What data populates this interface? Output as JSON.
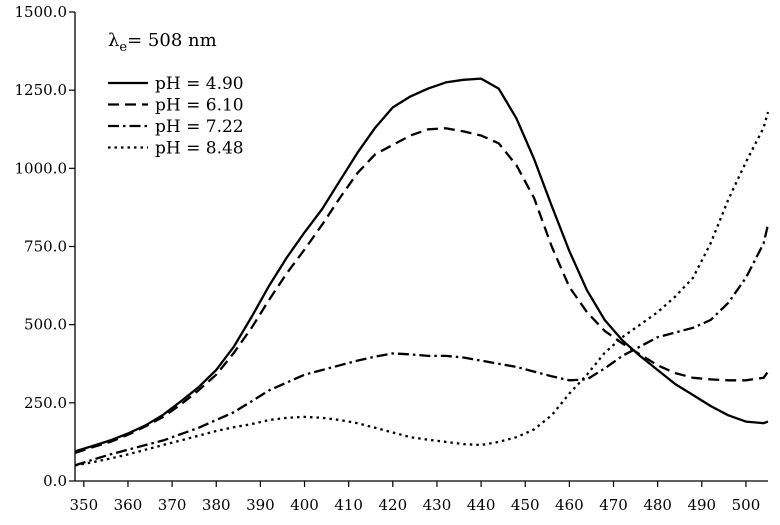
{
  "annotation": {
    "lambda": "λ",
    "sub": "e",
    "value": "= 508 nm"
  },
  "chart_data": {
    "type": "line",
    "title": "",
    "xlabel": "",
    "ylabel": "",
    "xlim": [
      348,
      505
    ],
    "ylim": [
      0,
      1500
    ],
    "grid": false,
    "legend_position": "top-left",
    "x_ticks": [
      350,
      360,
      370,
      380,
      390,
      400,
      410,
      420,
      430,
      440,
      450,
      460,
      470,
      480,
      490,
      500
    ],
    "y_ticks": [
      0,
      250,
      500,
      750,
      1000,
      1250,
      1500
    ],
    "y_tick_labels": [
      "0.0",
      "250.0",
      "500.0",
      "750.0",
      "1000.0",
      "1250.0",
      "1500.0"
    ],
    "x": [
      348,
      352,
      356,
      360,
      364,
      368,
      372,
      376,
      380,
      384,
      388,
      392,
      396,
      400,
      404,
      408,
      412,
      416,
      420,
      424,
      428,
      432,
      436,
      440,
      444,
      448,
      452,
      456,
      460,
      464,
      468,
      472,
      476,
      480,
      484,
      488,
      492,
      496,
      500,
      504,
      505
    ],
    "series": [
      {
        "name": "pH = 4.90",
        "dash": "solid",
        "values": [
          95,
          112,
          130,
          152,
          178,
          212,
          255,
          300,
          355,
          430,
          525,
          625,
          715,
          795,
          870,
          960,
          1050,
          1130,
          1195,
          1230,
          1255,
          1275,
          1283,
          1287,
          1255,
          1160,
          1030,
          880,
          735,
          610,
          515,
          450,
          400,
          355,
          310,
          275,
          240,
          210,
          190,
          185,
          190
        ]
      },
      {
        "name": "pH = 6.10",
        "dash": "dash",
        "values": [
          90,
          108,
          125,
          148,
          175,
          205,
          245,
          290,
          340,
          410,
          490,
          580,
          665,
          740,
          820,
          905,
          985,
          1045,
          1075,
          1105,
          1125,
          1128,
          1118,
          1105,
          1080,
          1010,
          905,
          750,
          620,
          540,
          480,
          440,
          405,
          370,
          345,
          330,
          325,
          322,
          322,
          330,
          350
        ]
      },
      {
        "name": "pH = 7.22",
        "dash": "dashdot",
        "values": [
          50,
          68,
          85,
          100,
          115,
          130,
          150,
          170,
          195,
          220,
          255,
          290,
          315,
          340,
          355,
          370,
          385,
          398,
          408,
          405,
          400,
          400,
          395,
          385,
          375,
          365,
          350,
          335,
          322,
          325,
          360,
          400,
          430,
          460,
          475,
          490,
          515,
          570,
          650,
          760,
          820
        ]
      },
      {
        "name": "pH = 8.48",
        "dash": "dot",
        "values": [
          50,
          60,
          72,
          85,
          100,
          115,
          130,
          145,
          160,
          172,
          182,
          195,
          202,
          205,
          202,
          195,
          185,
          170,
          155,
          140,
          132,
          125,
          118,
          115,
          125,
          140,
          165,
          210,
          280,
          340,
          410,
          460,
          500,
          540,
          590,
          650,
          760,
          900,
          1020,
          1130,
          1180
        ]
      }
    ]
  }
}
